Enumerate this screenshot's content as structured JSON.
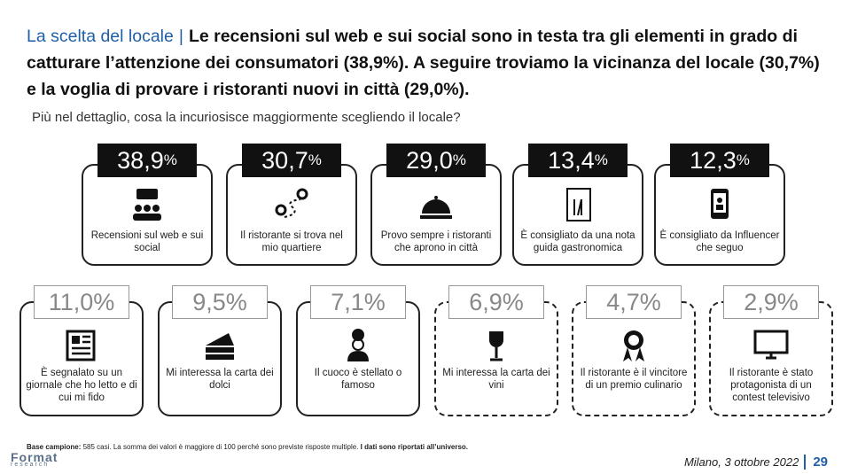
{
  "header": {
    "topic": "La scelta del locale",
    "separator": "|",
    "title": "Le recensioni sul web e sui social sono in testa tra gli elementi in grado di catturare l’attenzione dei consumatori (38,9%). A seguire troviamo la vicinanza del locale (30,7%) e la voglia di provare i ristoranti nuovi in città (29,0%).",
    "question": "Più nel dettaglio, cosa la incuriosisce maggiormente scegliendo il locale?"
  },
  "items": [
    {
      "value": "38,9",
      "unit": "%",
      "label": "Recensioni sul web e sui social"
    },
    {
      "value": "30,7",
      "unit": "%",
      "label": "Il ristorante si trova nel mio quartiere"
    },
    {
      "value": "29,0",
      "unit": "%",
      "label": "Provo sempre i ristoranti che aprono in città"
    },
    {
      "value": "13,4",
      "unit": "%",
      "label": "È consigliato da una nota guida gastronomica"
    },
    {
      "value": "12,3",
      "unit": "%",
      "label": "È consigliato da Influencer che seguo"
    },
    {
      "value": "11,0",
      "unit": "%",
      "label": "È segnalato su un giornale che ho letto e di cui mi fido"
    },
    {
      "value": "9,5",
      "unit": "%",
      "label": "Mi interessa la carta dei dolci"
    },
    {
      "value": "7,1",
      "unit": "%",
      "label": "Il cuoco è stellato o famoso"
    },
    {
      "value": "6,9",
      "unit": "%",
      "label": "Mi interessa la carta dei vini"
    },
    {
      "value": "4,7",
      "unit": "%",
      "label": "Il ristorante è il vincitore di un premio culinario"
    },
    {
      "value": "2,9",
      "unit": "%",
      "label": "Il ristorante è stato protagonista di un contest televisivo"
    }
  ],
  "footer": {
    "base_label": "Base campione:",
    "base_text": "585 casi. La somma dei valori è maggiore di 100 perché sono previste risposte multiple.",
    "base_note": "I dati sono riportati all’universo.",
    "logo": "Format",
    "logo_sub": "research",
    "date": "Milano, 3 ottobre 2022",
    "page": "29"
  }
}
